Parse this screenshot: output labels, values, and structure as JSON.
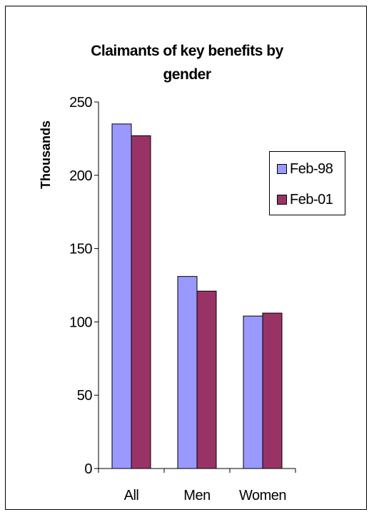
{
  "chart_data": {
    "type": "bar",
    "title": "Claimants of key benefits by gender",
    "title_lines": [
      "Claimants of key benefits by",
      "gender"
    ],
    "xlabel": "",
    "ylabel": "Thousands",
    "categories": [
      "All",
      "Men",
      "Women"
    ],
    "series": [
      {
        "name": "Feb-98",
        "values": [
          235,
          131,
          104
        ],
        "color": "#9999ff"
      },
      {
        "name": "Feb-01",
        "values": [
          227,
          121,
          106
        ],
        "color": "#993366"
      }
    ],
    "ylim": [
      0,
      250
    ],
    "yticks": [
      0,
      50,
      100,
      150,
      200,
      250
    ],
    "grid": false,
    "legend_position": "right"
  }
}
